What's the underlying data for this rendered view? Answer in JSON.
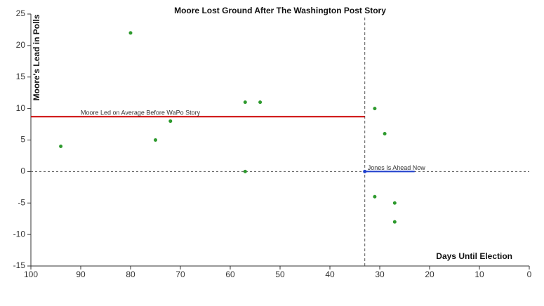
{
  "chart_data": {
    "type": "scatter",
    "title": "Moore Lost Ground After The Washington Post Story",
    "xlabel": "Days Until Election",
    "ylabel": "Moore's Lead in Polls",
    "x": [
      94,
      80,
      75,
      72,
      57,
      57,
      54,
      31,
      29,
      31,
      27,
      27
    ],
    "values": [
      4,
      22,
      5,
      8,
      11,
      0,
      11,
      10,
      6,
      -4,
      -5,
      -8
    ],
    "color": "#2e9a2e",
    "xlim": [
      100,
      0
    ],
    "xticks": [
      100,
      90,
      80,
      70,
      60,
      50,
      40,
      30,
      20,
      10,
      0
    ],
    "ylim": [
      -15,
      25
    ],
    "yticks": [
      -15,
      -10,
      -5,
      0,
      5,
      10,
      15,
      20,
      25
    ],
    "reference_lines": {
      "x": 33,
      "y": 0
    },
    "annotations": [
      {
        "label": "Moore Led on Average Before WaPo Story",
        "x": [
          100,
          33
        ],
        "y": 8.7,
        "color": "#cc0000"
      },
      {
        "label": "Jones Is Ahead Now",
        "x": [
          33,
          23
        ],
        "y": 0,
        "color": "#1f3fcc"
      }
    ]
  }
}
